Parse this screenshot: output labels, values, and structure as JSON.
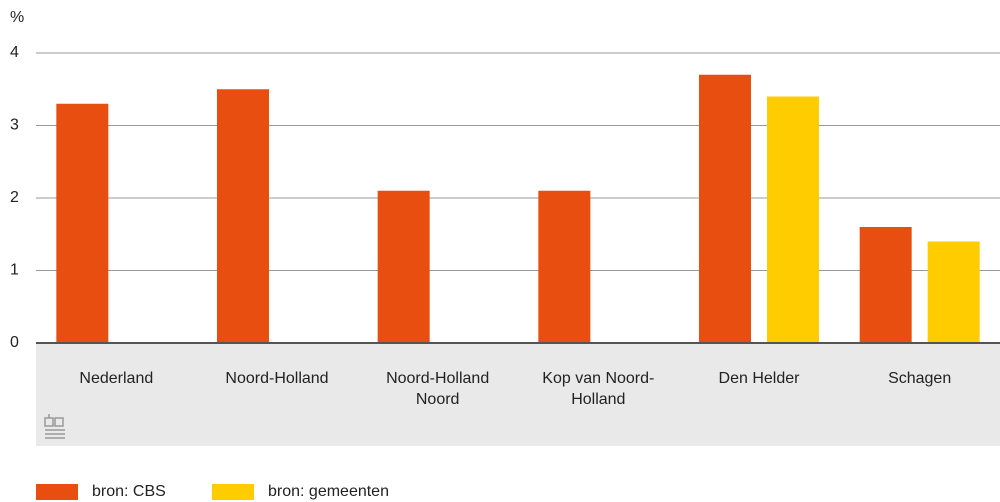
{
  "chart_data": {
    "type": "bar",
    "y_label": "%",
    "categories": [
      "Nederland",
      "Noord-Holland",
      "Noord-Holland Noord",
      "Kop van Noord-Holland",
      "Den Helder",
      "Schagen"
    ],
    "series": [
      {
        "name": "bron: CBS",
        "color": "#e84e10",
        "values": [
          3.3,
          3.5,
          2.1,
          2.1,
          3.7,
          1.6
        ]
      },
      {
        "name": "bron: gemeenten",
        "color": "#ffcc00",
        "values": [
          null,
          null,
          null,
          null,
          3.4,
          1.4
        ]
      }
    ],
    "ylim": [
      0,
      4
    ],
    "yticks": [
      0,
      1,
      2,
      3,
      4
    ],
    "grid": true
  }
}
